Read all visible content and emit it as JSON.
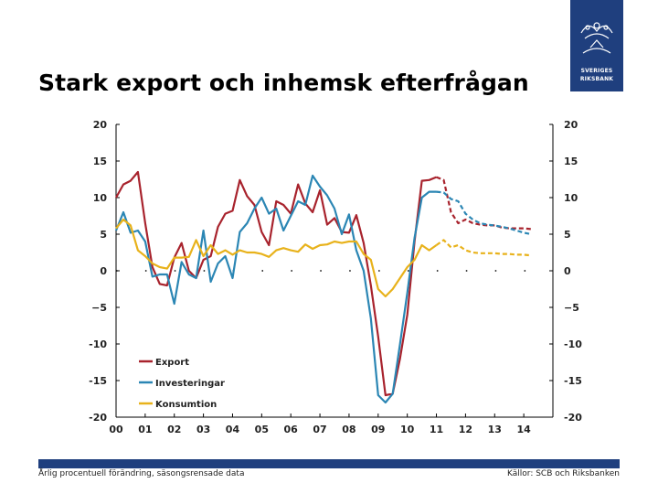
{
  "slide": {
    "title": "Stark export och inhemsk efterfrågan",
    "footer_left": "Årlig procentuell förändring, säsongsrensade data",
    "footer_right": "Källor: SCB och Riksbanken",
    "logo_line1": "SVERIGES",
    "logo_line2": "RIKSBANK",
    "brand_color": "#1f3f7e"
  },
  "chart_data": {
    "type": "line",
    "title": "",
    "xlabel": "",
    "ylabel": "",
    "ylim": [
      -20,
      20
    ],
    "yticks": [
      20,
      15,
      10,
      5,
      0,
      -5,
      -10,
      -15,
      -20
    ],
    "ytick_labels": [
      "20",
      "15",
      "10",
      "5",
      "0",
      "−5",
      "-10",
      "-15",
      "-20"
    ],
    "xlim": [
      2000,
      2015
    ],
    "xticks": [
      2000,
      2001,
      2002,
      2003,
      2004,
      2005,
      2006,
      2007,
      2008,
      2009,
      2010,
      2011,
      2012,
      2013,
      2014
    ],
    "xtick_labels": [
      "00",
      "01",
      "02",
      "03",
      "04",
      "05",
      "06",
      "07",
      "08",
      "09",
      "10",
      "11",
      "12",
      "13",
      "14"
    ],
    "forecast_start": 2011.0,
    "legend_position": "lower-left",
    "series": [
      {
        "name": "Export",
        "color": "#a8232d",
        "x": [
          2000.0,
          2000.25,
          2000.5,
          2000.75,
          2001.0,
          2001.25,
          2001.5,
          2001.75,
          2002.0,
          2002.25,
          2002.5,
          2002.75,
          2003.0,
          2003.25,
          2003.5,
          2003.75,
          2004.0,
          2004.25,
          2004.5,
          2004.75,
          2005.0,
          2005.25,
          2005.5,
          2005.75,
          2006.0,
          2006.25,
          2006.5,
          2006.75,
          2007.0,
          2007.25,
          2007.5,
          2007.75,
          2008.0,
          2008.25,
          2008.5,
          2008.75,
          2009.0,
          2009.25,
          2009.5,
          2009.75,
          2010.0,
          2010.25,
          2010.5,
          2010.75,
          2011.0,
          2011.25,
          2011.5,
          2011.75,
          2012.0,
          2012.25,
          2012.5,
          2012.75,
          2013.0,
          2013.25,
          2013.5,
          2013.75,
          2014.0,
          2014.25
        ],
        "values": [
          10.0,
          11.8,
          12.3,
          13.5,
          6.5,
          0.5,
          -1.8,
          -2.0,
          1.8,
          3.8,
          0.0,
          -1.0,
          1.5,
          2.0,
          6.0,
          7.8,
          8.2,
          12.4,
          10.2,
          9.0,
          5.3,
          3.5,
          9.5,
          9.0,
          7.8,
          11.8,
          9.2,
          8.0,
          11.0,
          6.3,
          7.2,
          5.3,
          5.2,
          7.6,
          3.8,
          -2.0,
          -9.0,
          -17.0,
          -16.8,
          -12.0,
          -6.0,
          4.0,
          12.3,
          12.4,
          12.8,
          12.4,
          8.0,
          6.5,
          7.0,
          6.5,
          6.3,
          6.2,
          6.2,
          5.9,
          5.8,
          5.8,
          5.8,
          5.7
        ]
      },
      {
        "name": "Investeringar",
        "color": "#2b86b4",
        "x": [
          2000.0,
          2000.25,
          2000.5,
          2000.75,
          2001.0,
          2001.25,
          2001.5,
          2001.75,
          2002.0,
          2002.25,
          2002.5,
          2002.75,
          2003.0,
          2003.25,
          2003.5,
          2003.75,
          2004.0,
          2004.25,
          2004.5,
          2004.75,
          2005.0,
          2005.25,
          2005.5,
          2005.75,
          2006.0,
          2006.25,
          2006.5,
          2006.75,
          2007.0,
          2007.25,
          2007.5,
          2007.75,
          2008.0,
          2008.25,
          2008.5,
          2008.75,
          2009.0,
          2009.25,
          2009.5,
          2009.75,
          2010.0,
          2010.25,
          2010.5,
          2010.75,
          2011.0,
          2011.25,
          2011.5,
          2011.75,
          2012.0,
          2012.25,
          2012.5,
          2012.75,
          2013.0,
          2013.25,
          2013.5,
          2013.75,
          2014.0,
          2014.25
        ],
        "values": [
          5.5,
          8.0,
          5.2,
          5.5,
          4.0,
          -0.8,
          -0.5,
          -0.5,
          -4.5,
          1.2,
          -0.5,
          -1.0,
          5.5,
          -1.5,
          1.0,
          2.0,
          -1.0,
          5.3,
          6.5,
          8.5,
          10.0,
          7.8,
          8.5,
          5.5,
          7.5,
          9.5,
          9.0,
          13.0,
          11.5,
          10.3,
          8.5,
          5.0,
          7.7,
          2.8,
          0.0,
          -6.5,
          -17.0,
          -18.0,
          -16.8,
          -10.0,
          -3.0,
          4.5,
          10.0,
          10.8,
          10.8,
          10.7,
          9.8,
          9.5,
          7.8,
          7.0,
          6.5,
          6.3,
          6.2,
          6.0,
          5.8,
          5.5,
          5.2,
          5.0
        ]
      },
      {
        "name": "Konsumtion",
        "color": "#e8b21b",
        "x": [
          2000.0,
          2000.25,
          2000.5,
          2000.75,
          2001.0,
          2001.25,
          2001.5,
          2001.75,
          2002.0,
          2002.25,
          2002.5,
          2002.75,
          2003.0,
          2003.25,
          2003.5,
          2003.75,
          2004.0,
          2004.25,
          2004.5,
          2004.75,
          2005.0,
          2005.25,
          2005.5,
          2005.75,
          2006.0,
          2006.25,
          2006.5,
          2006.75,
          2007.0,
          2007.25,
          2007.5,
          2007.75,
          2008.0,
          2008.25,
          2008.5,
          2008.75,
          2009.0,
          2009.25,
          2009.5,
          2009.75,
          2010.0,
          2010.25,
          2010.5,
          2010.75,
          2011.0,
          2011.25,
          2011.5,
          2011.75,
          2012.0,
          2012.25,
          2012.5,
          2012.75,
          2013.0,
          2013.25,
          2013.5,
          2013.75,
          2014.0,
          2014.25
        ],
        "values": [
          5.8,
          7.0,
          6.2,
          2.8,
          2.0,
          1.0,
          0.5,
          0.3,
          1.8,
          1.8,
          1.9,
          4.2,
          2.0,
          3.5,
          2.3,
          2.8,
          2.2,
          2.8,
          2.5,
          2.5,
          2.3,
          1.9,
          2.8,
          3.1,
          2.8,
          2.6,
          3.6,
          3.0,
          3.5,
          3.6,
          4.0,
          3.8,
          4.0,
          4.0,
          2.3,
          1.5,
          -2.5,
          -3.5,
          -2.5,
          -1.0,
          0.5,
          1.5,
          3.5,
          2.8,
          3.5,
          4.2,
          3.2,
          3.5,
          2.8,
          2.5,
          2.4,
          2.4,
          2.4,
          2.3,
          2.3,
          2.2,
          2.2,
          2.1
        ]
      }
    ]
  }
}
